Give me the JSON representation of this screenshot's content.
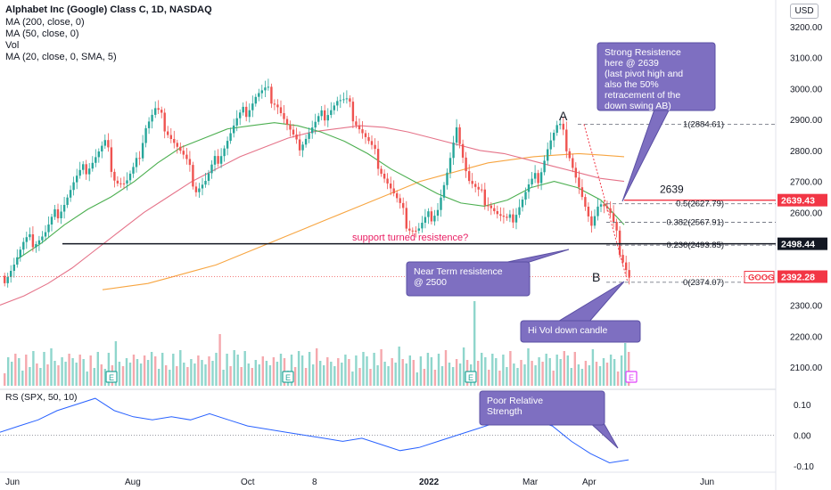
{
  "header": {
    "title": "Alphabet Inc (Google) Class C, 1D, NASDAQ",
    "indicators": [
      "MA (200, close, 0)",
      "MA (50, close, 0)",
      "Vol",
      "MA (20, close, 0, SMA, 5)"
    ],
    "currency": "USD"
  },
  "chart_data": {
    "type": "line",
    "title": "Alphabet Inc (Google) Class C, 1D, NASDAQ",
    "note": "Candlestick price panel with volume and relative strength panels",
    "price_axis": {
      "ticks": [
        2100,
        2200,
        2300,
        2400,
        2500,
        2600,
        2700,
        2800,
        2900,
        3000,
        3100,
        3200
      ],
      "labels": [
        "2100.00",
        "2200.00",
        "2300.00",
        "2400.00",
        "2500.00",
        "2600.00",
        "2700.00",
        "2800.00",
        "2900.00",
        "3000.00",
        "3100.00",
        "3200.00"
      ]
    },
    "rs_axis": {
      "ticks": [
        0.1,
        0.0,
        -0.1
      ],
      "labels": [
        "0.10",
        "0.00",
        "-0.10"
      ]
    },
    "time_axis": {
      "labels": [
        "Jun",
        "Aug",
        "Oct",
        "8",
        "2022",
        "Mar",
        "Apr",
        "Jun"
      ]
    },
    "price_close": [
      2395,
      2440,
      2500,
      2510,
      2530,
      2590,
      2640,
      2700,
      2740,
      2780,
      2820,
      2710,
      2690,
      2740,
      2880,
      2930,
      2880,
      2820,
      2760,
      2680,
      2700,
      2770,
      2830,
      2890,
      2930,
      2980,
      2990,
      2960,
      2880,
      2810,
      2850,
      2890,
      2930,
      2960,
      2950,
      2890,
      2830,
      2770,
      2700,
      2630,
      2560,
      2540,
      2580,
      2620,
      2730,
      2870,
      2710,
      2660,
      2640,
      2590,
      2560,
      2620,
      2680,
      2720,
      2820,
      2880,
      2800,
      2680,
      2560,
      2640,
      2600,
      2490,
      2392
    ],
    "ma200": [
      2350,
      2360,
      2370,
      2390,
      2410,
      2430,
      2460,
      2490,
      2520,
      2550,
      2580,
      2610,
      2640,
      2670,
      2700,
      2720,
      2740,
      2760,
      2770,
      2780,
      2785,
      2790,
      2785,
      2780
    ],
    "ma50": [
      2300,
      2330,
      2370,
      2420,
      2480,
      2540,
      2600,
      2650,
      2700,
      2740,
      2780,
      2810,
      2840,
      2860,
      2870,
      2880,
      2875,
      2860,
      2840,
      2820,
      2800,
      2790,
      2770,
      2750,
      2730,
      2710,
      2700
    ],
    "ma20": [
      2450,
      2500,
      2560,
      2610,
      2650,
      2700,
      2760,
      2810,
      2840,
      2870,
      2880,
      2890,
      2880,
      2860,
      2830,
      2790,
      2740,
      2700,
      2660,
      2630,
      2620,
      2640,
      2680,
      2700,
      2680,
      2640,
      2560
    ],
    "rs_values": [
      0.01,
      0.03,
      0.05,
      0.08,
      0.1,
      0.12,
      0.08,
      0.06,
      0.05,
      0.06,
      0.05,
      0.07,
      0.05,
      0.03,
      0.02,
      0.01,
      0.0,
      -0.01,
      -0.02,
      -0.01,
      -0.03,
      -0.05,
      -0.04,
      -0.02,
      0.0,
      0.02,
      0.04,
      0.06,
      0.05,
      0.03,
      -0.02,
      -0.06,
      -0.09,
      -0.08
    ],
    "fib_levels": [
      {
        "label": "1(2884.61)",
        "value": 2884.61
      },
      {
        "label": "0.5(2627.79)",
        "value": 2627.79
      },
      {
        "label": "0.382(2567.91)",
        "value": 2567.91
      },
      {
        "label": "0.236(2493.85)",
        "value": 2493.85
      },
      {
        "label": "0(2374.07)",
        "value": 2374.07
      }
    ],
    "price_badges": [
      {
        "label": "2639.43",
        "value": 2639.43,
        "color": "#f23645"
      },
      {
        "label": "2498.44",
        "value": 2498.44,
        "color": "#131722"
      },
      {
        "label": "2392.28",
        "value": 2392.28,
        "color": "#f23645",
        "tag": "GOOG"
      }
    ],
    "horizontal_lines": [
      {
        "value": 2498.44,
        "color": "#131722"
      },
      {
        "value": 2639.43,
        "color": "#f23645",
        "label": "2639"
      }
    ],
    "pivot_labels": [
      "A",
      "B"
    ],
    "annotations": [
      "Strong Resistence here @ 2639 (last pivot high and also the 50% retracement of the down swing AB)",
      "support turned resistence?",
      "Near Term resistence @ 2500",
      "Hi Vol down candle",
      "Poor Relative Strength"
    ],
    "rs_label": "RS (SPX, 50, 10)",
    "earnings_marker": "E"
  }
}
